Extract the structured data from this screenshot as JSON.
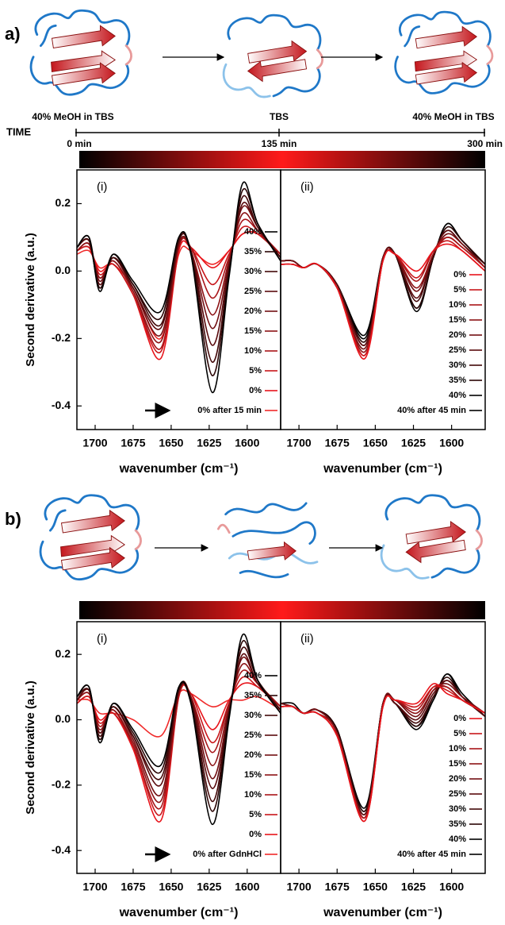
{
  "figure": {
    "panels": [
      {
        "label": "a)",
        "states": [
          "40% MeOH in TBS",
          "TBS",
          "40% MeOH in TBS"
        ],
        "time_axis": {
          "label": "TIME",
          "ticks": [
            "0 min",
            "135 min",
            "300 min"
          ]
        }
      },
      {
        "label": "b)"
      }
    ]
  },
  "chart_data": [
    {
      "type": "line",
      "panel_label": "(i)",
      "ylabel": "Second derivative (a.u.)",
      "xlabel": "wavenumber (cm⁻¹)",
      "x": [
        1712,
        1704,
        1697,
        1688,
        1675,
        1657,
        1645,
        1637,
        1623,
        1612,
        1603,
        1593,
        1578
      ],
      "xlim": [
        1712,
        1578
      ],
      "xticks": [
        1700,
        1675,
        1650,
        1625,
        1600
      ],
      "ylim": [
        -0.47,
        0.3
      ],
      "yticks": [
        0.2,
        {
          "value": 0,
          "label": "0.0"
        },
        -0.2,
        -0.4
      ],
      "legend": "lower right",
      "series": [
        {
          "name": "40%",
          "color": "#000000",
          "values": [
            0.07,
            0.1,
            -0.06,
            0.05,
            -0.03,
            -0.12,
            0.1,
            0.05,
            -0.36,
            -0.02,
            0.26,
            0.14,
            0.03
          ]
        },
        {
          "name": "35%",
          "color": "#2a0505",
          "values": [
            0.07,
            0.1,
            -0.05,
            0.05,
            -0.04,
            -0.14,
            0.1,
            0.05,
            -0.31,
            -0.01,
            0.24,
            0.14,
            0.03
          ]
        },
        {
          "name": "30%",
          "color": "#420809",
          "values": [
            0.07,
            0.09,
            -0.05,
            0.04,
            -0.04,
            -0.16,
            0.09,
            0.06,
            -0.27,
            0.0,
            0.22,
            0.13,
            0.04
          ]
        },
        {
          "name": "25%",
          "color": "#5a0b0e",
          "values": [
            0.07,
            0.09,
            -0.04,
            0.04,
            -0.05,
            -0.17,
            0.09,
            0.06,
            -0.22,
            0.01,
            0.2,
            0.13,
            0.04
          ]
        },
        {
          "name": "20%",
          "color": "#720f12",
          "values": [
            0.07,
            0.09,
            -0.03,
            0.04,
            -0.05,
            -0.19,
            0.08,
            0.06,
            -0.17,
            0.02,
            0.19,
            0.13,
            0.04
          ]
        },
        {
          "name": "15%",
          "color": "#8c1215",
          "values": [
            0.06,
            0.08,
            -0.02,
            0.03,
            -0.06,
            -0.21,
            0.08,
            0.06,
            -0.13,
            0.03,
            0.17,
            0.12,
            0.04
          ]
        },
        {
          "name": "10%",
          "color": "#a81418",
          "values": [
            0.06,
            0.08,
            -0.02,
            0.03,
            -0.06,
            -0.23,
            0.07,
            0.07,
            -0.08,
            0.04,
            0.15,
            0.12,
            0.05
          ]
        },
        {
          "name": "5%",
          "color": "#c8161a",
          "values": [
            0.06,
            0.07,
            -0.01,
            0.02,
            -0.07,
            -0.24,
            0.07,
            0.07,
            -0.04,
            0.05,
            0.13,
            0.11,
            0.05
          ]
        },
        {
          "name": "0%",
          "color": "#e8141b",
          "values": [
            0.06,
            0.07,
            0.0,
            0.02,
            -0.07,
            -0.26,
            0.06,
            0.07,
            0.01,
            0.06,
            0.11,
            0.11,
            0.05
          ]
        },
        {
          "name": "0% after 15 min",
          "color": "#f02a2a",
          "values": [
            0.05,
            0.06,
            0.01,
            0.02,
            -0.05,
            -0.2,
            0.05,
            0.06,
            0.02,
            0.06,
            0.11,
            0.11,
            0.05
          ]
        }
      ]
    },
    {
      "type": "line",
      "panel_label": "(ii)",
      "xlabel": "wavenumber (cm⁻¹)",
      "x": [
        1712,
        1704,
        1697,
        1688,
        1675,
        1657,
        1645,
        1637,
        1623,
        1612,
        1603,
        1593,
        1578
      ],
      "xlim": [
        1712,
        1578
      ],
      "xticks": [
        1700,
        1675,
        1650,
        1625,
        1600
      ],
      "ylim": [
        -0.47,
        0.3
      ],
      "legend": "lower right",
      "series": [
        {
          "name": "0%",
          "color": "#e8141b",
          "values": [
            0.02,
            0.02,
            0.01,
            0.02,
            -0.05,
            -0.26,
            0.03,
            0.05,
            0.0,
            0.06,
            0.08,
            0.06,
            0.0
          ]
        },
        {
          "name": "5%",
          "color": "#c8161a",
          "values": [
            0.02,
            0.02,
            0.01,
            0.02,
            -0.05,
            -0.25,
            0.03,
            0.05,
            -0.02,
            0.06,
            0.09,
            0.06,
            0.0
          ]
        },
        {
          "name": "10%",
          "color": "#a81418",
          "values": [
            0.02,
            0.02,
            0.01,
            0.02,
            -0.05,
            -0.25,
            0.03,
            0.05,
            -0.03,
            0.06,
            0.1,
            0.07,
            0.01
          ]
        },
        {
          "name": "15%",
          "color": "#8c1215",
          "values": [
            0.02,
            0.02,
            0.01,
            0.02,
            -0.05,
            -0.24,
            0.03,
            0.05,
            -0.05,
            0.05,
            0.1,
            0.07,
            0.01
          ]
        },
        {
          "name": "20%",
          "color": "#720f12",
          "values": [
            0.03,
            0.03,
            0.01,
            0.02,
            -0.05,
            -0.23,
            0.04,
            0.05,
            -0.06,
            0.05,
            0.11,
            0.08,
            0.01
          ]
        },
        {
          "name": "25%",
          "color": "#5a0b0e",
          "values": [
            0.03,
            0.03,
            0.01,
            0.02,
            -0.04,
            -0.22,
            0.04,
            0.05,
            -0.08,
            0.05,
            0.12,
            0.08,
            0.01
          ]
        },
        {
          "name": "30%",
          "color": "#420809",
          "values": [
            0.03,
            0.03,
            0.01,
            0.02,
            -0.04,
            -0.22,
            0.04,
            0.05,
            -0.09,
            0.05,
            0.12,
            0.08,
            0.02
          ]
        },
        {
          "name": "35%",
          "color": "#2a0505",
          "values": [
            0.03,
            0.03,
            0.01,
            0.02,
            -0.04,
            -0.21,
            0.04,
            0.05,
            -0.11,
            0.04,
            0.13,
            0.09,
            0.02
          ]
        },
        {
          "name": "40%",
          "color": "#000000",
          "values": [
            0.03,
            0.03,
            0.01,
            0.02,
            -0.04,
            -0.2,
            0.04,
            0.05,
            -0.12,
            0.04,
            0.14,
            0.09,
            0.02
          ]
        },
        {
          "name": "40% after 45 min",
          "color": "#000000",
          "values": [
            0.03,
            0.03,
            0.01,
            0.02,
            -0.04,
            -0.19,
            0.04,
            0.05,
            -0.11,
            0.04,
            0.14,
            0.09,
            0.02
          ]
        }
      ]
    },
    {
      "type": "line",
      "panel_label": "(i)",
      "ylabel": "Second derivative (a.u.)",
      "xlabel": "wavenumber (cm⁻¹)",
      "x": [
        1712,
        1704,
        1697,
        1688,
        1675,
        1657,
        1645,
        1637,
        1623,
        1612,
        1603,
        1593,
        1578
      ],
      "xlim": [
        1712,
        1578
      ],
      "xticks": [
        1700,
        1675,
        1650,
        1625,
        1600
      ],
      "ylim": [
        -0.47,
        0.3
      ],
      "yticks": [
        0.2,
        {
          "value": 0,
          "label": "0.0"
        },
        -0.2,
        -0.4
      ],
      "legend": "lower right",
      "series": [
        {
          "name": "40%",
          "color": "#000000",
          "values": [
            0.07,
            0.1,
            -0.07,
            0.05,
            -0.03,
            -0.14,
            0.1,
            0.05,
            -0.32,
            0.0,
            0.26,
            0.12,
            0.02
          ]
        },
        {
          "name": "35%",
          "color": "#2a0505",
          "values": [
            0.07,
            0.1,
            -0.06,
            0.05,
            -0.04,
            -0.16,
            0.1,
            0.05,
            -0.28,
            0.01,
            0.24,
            0.12,
            0.02
          ]
        },
        {
          "name": "30%",
          "color": "#420809",
          "values": [
            0.07,
            0.09,
            -0.05,
            0.04,
            -0.05,
            -0.18,
            0.09,
            0.06,
            -0.25,
            0.02,
            0.22,
            0.12,
            0.03
          ]
        },
        {
          "name": "25%",
          "color": "#5a0b0e",
          "values": [
            0.06,
            0.09,
            -0.04,
            0.04,
            -0.05,
            -0.2,
            0.09,
            0.06,
            -0.21,
            0.02,
            0.2,
            0.11,
            0.03
          ]
        },
        {
          "name": "20%",
          "color": "#720f12",
          "values": [
            0.06,
            0.09,
            -0.04,
            0.04,
            -0.06,
            -0.23,
            0.09,
            0.07,
            -0.18,
            0.03,
            0.19,
            0.11,
            0.03
          ]
        },
        {
          "name": "15%",
          "color": "#8c1215",
          "values": [
            0.06,
            0.08,
            -0.03,
            0.03,
            -0.07,
            -0.25,
            0.08,
            0.07,
            -0.14,
            0.04,
            0.17,
            0.11,
            0.03
          ]
        },
        {
          "name": "10%",
          "color": "#a81418",
          "values": [
            0.06,
            0.08,
            -0.02,
            0.03,
            -0.08,
            -0.27,
            0.08,
            0.07,
            -0.1,
            0.05,
            0.15,
            0.11,
            0.04
          ]
        },
        {
          "name": "5%",
          "color": "#c8161a",
          "values": [
            0.05,
            0.07,
            -0.01,
            0.02,
            -0.08,
            -0.29,
            0.07,
            0.08,
            -0.07,
            0.05,
            0.13,
            0.1,
            0.04
          ]
        },
        {
          "name": "0%",
          "color": "#e8141b",
          "values": [
            0.05,
            0.07,
            0.0,
            0.02,
            -0.09,
            -0.31,
            0.07,
            0.08,
            -0.03,
            0.06,
            0.11,
            0.1,
            0.04
          ]
        },
        {
          "name": "0% after GdnHCl",
          "color": "#f02a2a",
          "values": [
            0.06,
            0.06,
            0.02,
            0.02,
            0.0,
            -0.05,
            0.08,
            0.08,
            0.04,
            0.06,
            0.06,
            0.07,
            0.03
          ]
        }
      ]
    },
    {
      "type": "line",
      "panel_label": "(ii)",
      "xlabel": "wavenumber (cm⁻¹)",
      "x": [
        1712,
        1704,
        1697,
        1688,
        1675,
        1657,
        1645,
        1637,
        1623,
        1612,
        1603,
        1593,
        1578
      ],
      "xlim": [
        1712,
        1578
      ],
      "xticks": [
        1700,
        1675,
        1650,
        1625,
        1600
      ],
      "ylim": [
        -0.47,
        0.3
      ],
      "legend": "lower right",
      "series": [
        {
          "name": "0%",
          "color": "#e8141b",
          "values": [
            0.04,
            0.04,
            0.02,
            0.02,
            -0.05,
            -0.31,
            0.04,
            0.06,
            0.05,
            0.11,
            0.08,
            0.06,
            0.02
          ]
        },
        {
          "name": "5%",
          "color": "#c8161a",
          "values": [
            0.04,
            0.04,
            0.02,
            0.02,
            -0.05,
            -0.31,
            0.04,
            0.06,
            0.04,
            0.1,
            0.09,
            0.06,
            0.02
          ]
        },
        {
          "name": "10%",
          "color": "#a81418",
          "values": [
            0.04,
            0.04,
            0.02,
            0.02,
            -0.05,
            -0.3,
            0.04,
            0.06,
            0.03,
            0.1,
            0.1,
            0.06,
            0.02
          ]
        },
        {
          "name": "15%",
          "color": "#8c1215",
          "values": [
            0.04,
            0.04,
            0.02,
            0.02,
            -0.04,
            -0.3,
            0.04,
            0.06,
            0.02,
            0.09,
            0.1,
            0.06,
            0.02
          ]
        },
        {
          "name": "20%",
          "color": "#720f12",
          "values": [
            0.05,
            0.04,
            0.02,
            0.03,
            -0.04,
            -0.3,
            0.05,
            0.06,
            0.01,
            0.09,
            0.11,
            0.07,
            0.02
          ]
        },
        {
          "name": "25%",
          "color": "#5a0b0e",
          "values": [
            0.05,
            0.04,
            0.02,
            0.03,
            -0.04,
            -0.29,
            0.05,
            0.05,
            0.0,
            0.08,
            0.12,
            0.07,
            0.01
          ]
        },
        {
          "name": "30%",
          "color": "#420809",
          "values": [
            0.05,
            0.04,
            0.02,
            0.03,
            -0.04,
            -0.29,
            0.05,
            0.05,
            -0.01,
            0.07,
            0.12,
            0.07,
            0.01
          ]
        },
        {
          "name": "35%",
          "color": "#2a0505",
          "values": [
            0.05,
            0.04,
            0.02,
            0.03,
            -0.03,
            -0.28,
            0.05,
            0.05,
            -0.02,
            0.07,
            0.13,
            0.07,
            0.01
          ]
        },
        {
          "name": "40%",
          "color": "#000000",
          "values": [
            0.05,
            0.04,
            0.02,
            0.03,
            -0.03,
            -0.28,
            0.05,
            0.05,
            -0.03,
            0.06,
            0.14,
            0.07,
            0.01
          ]
        },
        {
          "name": "40% after 45 min",
          "color": "#000000",
          "values": [
            0.05,
            0.05,
            0.02,
            0.03,
            -0.03,
            -0.27,
            0.05,
            0.05,
            -0.02,
            0.06,
            0.14,
            0.08,
            0.01
          ]
        }
      ]
    }
  ]
}
